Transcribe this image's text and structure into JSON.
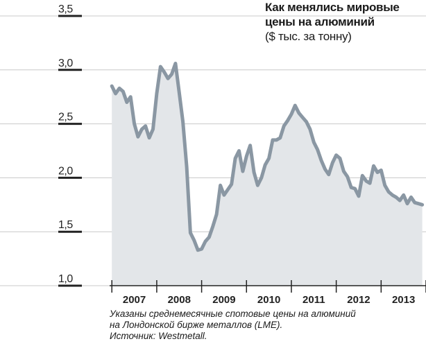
{
  "chart_data": {
    "type": "area",
    "title": "Как менялись мировые цены на алюминий",
    "title_lines": [
      "Как менялись мировые",
      "цены на алюминий"
    ],
    "subtitle": "($ тыс. за тонну)",
    "ylim": [
      1.0,
      3.5
    ],
    "y_ticks": [
      3.5,
      3.0,
      2.5,
      2.0,
      1.5,
      1.0
    ],
    "y_tick_labels": [
      "3,5",
      "3,0",
      "2,5",
      "2,0",
      "1,5",
      "1,0"
    ],
    "x_range": [
      2006.95,
      2014.0
    ],
    "x_categories": [
      "2007",
      "2008",
      "2009",
      "2010",
      "2011",
      "2012",
      "2013"
    ],
    "grid": true,
    "colors": {
      "line": "#8a97a3",
      "fill": "#e3e6e9",
      "grid": "#c8c8c8",
      "axis": "#222222"
    },
    "x": [
      2007.0,
      2007.083,
      2007.167,
      2007.25,
      2007.333,
      2007.417,
      2007.5,
      2007.583,
      2007.667,
      2007.75,
      2007.833,
      2007.917,
      2008.0,
      2008.083,
      2008.167,
      2008.25,
      2008.333,
      2008.417,
      2008.5,
      2008.583,
      2008.667,
      2008.75,
      2008.833,
      2008.917,
      2009.0,
      2009.083,
      2009.167,
      2009.25,
      2009.333,
      2009.417,
      2009.5,
      2009.583,
      2009.667,
      2009.75,
      2009.833,
      2009.917,
      2010.0,
      2010.083,
      2010.167,
      2010.25,
      2010.333,
      2010.417,
      2010.5,
      2010.583,
      2010.667,
      2010.75,
      2010.833,
      2010.917,
      2011.0,
      2011.083,
      2011.167,
      2011.25,
      2011.333,
      2011.417,
      2011.5,
      2011.583,
      2011.667,
      2011.75,
      2011.833,
      2011.917,
      2012.0,
      2012.083,
      2012.167,
      2012.25,
      2012.333,
      2012.417,
      2012.5,
      2012.583,
      2012.667,
      2012.75,
      2012.833,
      2012.917,
      2013.0,
      2013.083,
      2013.167,
      2013.25,
      2013.333,
      2013.417,
      2013.5,
      2013.583,
      2013.667,
      2013.75,
      2013.833,
      2013.917
    ],
    "values": [
      2.85,
      2.78,
      2.83,
      2.8,
      2.7,
      2.75,
      2.5,
      2.38,
      2.45,
      2.48,
      2.37,
      2.45,
      2.78,
      3.03,
      2.98,
      2.92,
      2.96,
      3.06,
      2.79,
      2.52,
      2.1,
      1.49,
      1.42,
      1.33,
      1.34,
      1.41,
      1.45,
      1.55,
      1.66,
      1.93,
      1.84,
      1.89,
      1.94,
      2.18,
      2.25,
      2.06,
      2.2,
      2.3,
      2.05,
      1.93,
      2.0,
      2.12,
      2.18,
      2.35,
      2.35,
      2.37,
      2.48,
      2.53,
      2.59,
      2.67,
      2.6,
      2.56,
      2.52,
      2.45,
      2.33,
      2.26,
      2.16,
      2.08,
      2.03,
      2.14,
      2.21,
      2.18,
      2.06,
      2.01,
      1.91,
      1.9,
      1.83,
      2.02,
      1.97,
      1.95,
      2.11,
      2.05,
      2.07,
      1.93,
      1.87,
      1.84,
      1.82,
      1.79,
      1.84,
      1.76,
      1.82,
      1.77,
      1.76,
      1.75
    ]
  },
  "notes": [
    "Указаны среднемесячные спотовые цены на алюминий",
    "на Лондонской бирже металлов (LME).",
    "Источник: Westmetall."
  ]
}
